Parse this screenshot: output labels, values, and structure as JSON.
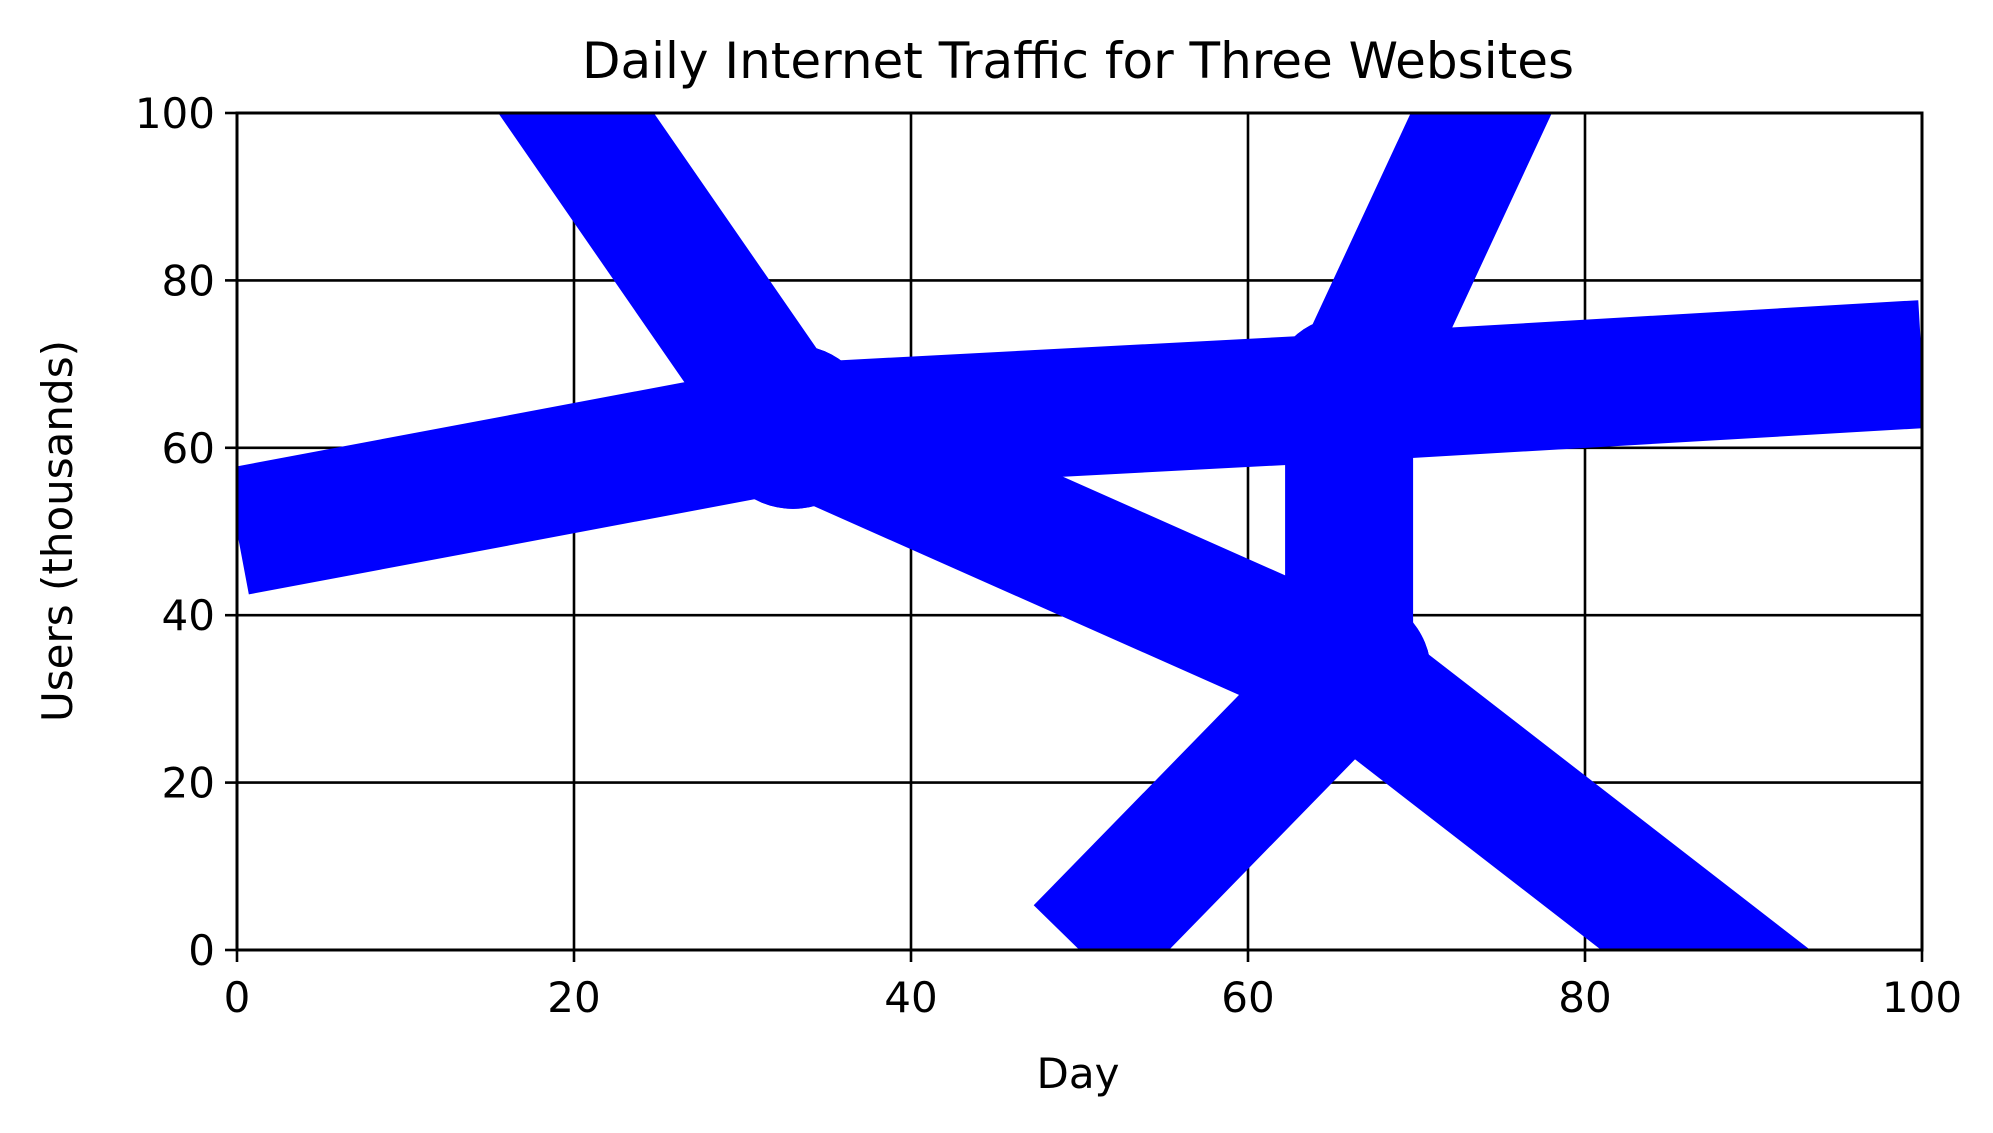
{
  "chart_data": {
    "type": "line",
    "title": "Daily Internet Traffic for Three Websites",
    "xlabel": "Day",
    "ylabel": "Users (thousands)",
    "xlim": [
      0,
      100
    ],
    "ylim": [
      0,
      100
    ],
    "xticks": [
      0,
      20,
      40,
      60,
      80,
      100
    ],
    "yticks": [
      0,
      20,
      40,
      60,
      80,
      100
    ],
    "grid": true,
    "series_color": "#0000ff",
    "series": [
      {
        "x": [
          0,
          33,
          66,
          100
        ],
        "y": [
          50,
          62.5,
          66,
          70
        ]
      },
      {
        "x": [
          16,
          33,
          66,
          100
        ],
        "y": [
          112,
          62.5,
          33,
          -20
        ]
      },
      {
        "x": [
          50,
          66,
          66,
          75
        ],
        "y": [
          0,
          33,
          66,
          105
        ]
      }
    ]
  }
}
